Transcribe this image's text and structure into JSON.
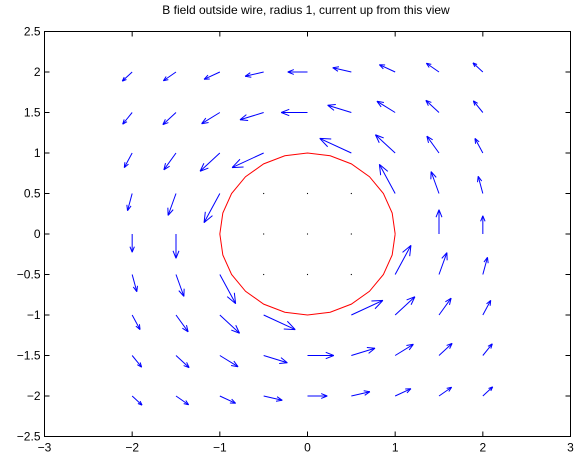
{
  "chart_data": {
    "type": "quiver",
    "title": "B field outside wire, radius 1, current up from this view",
    "xlabel": "",
    "ylabel": "",
    "xlim": [
      -3,
      3
    ],
    "ylim": [
      -2.5,
      2.5
    ],
    "xticks": [
      -3,
      -2,
      -1,
      0,
      1,
      2,
      3
    ],
    "yticks": [
      -2.5,
      -2,
      -1.5,
      -1,
      -0.5,
      0,
      0.5,
      1,
      1.5,
      2,
      2.5
    ],
    "xtick_labels": [
      "−3",
      "−2",
      "−1",
      "0",
      "1",
      "2",
      "3"
    ],
    "ytick_labels": [
      "−2.5",
      "−2",
      "−1.5",
      "−1",
      "−0.5",
      "0",
      "0.5",
      "1",
      "1.5",
      "2",
      "2.5"
    ],
    "grid": false,
    "arrow_color": "#0000ff",
    "circle_color": "#ff0000",
    "circle": {
      "center": [
        0,
        0
      ],
      "radius": 1
    },
    "grid_x": [
      -2,
      -1.5,
      -1,
      -0.5,
      0,
      0.5,
      1,
      1.5,
      2
    ],
    "grid_y": [
      -2,
      -1.5,
      -1,
      -0.5,
      0,
      0.5,
      1,
      1.5,
      2
    ],
    "arrow_scale": 0.45,
    "interior_points": [
      [
        -0.5,
        0.5
      ],
      [
        0,
        0.5
      ],
      [
        0.5,
        0.5
      ],
      [
        -0.5,
        0
      ],
      [
        0,
        0
      ],
      [
        0.5,
        0
      ],
      [
        -0.5,
        -0.5
      ],
      [
        0,
        -0.5
      ],
      [
        0.5,
        -0.5
      ]
    ]
  }
}
